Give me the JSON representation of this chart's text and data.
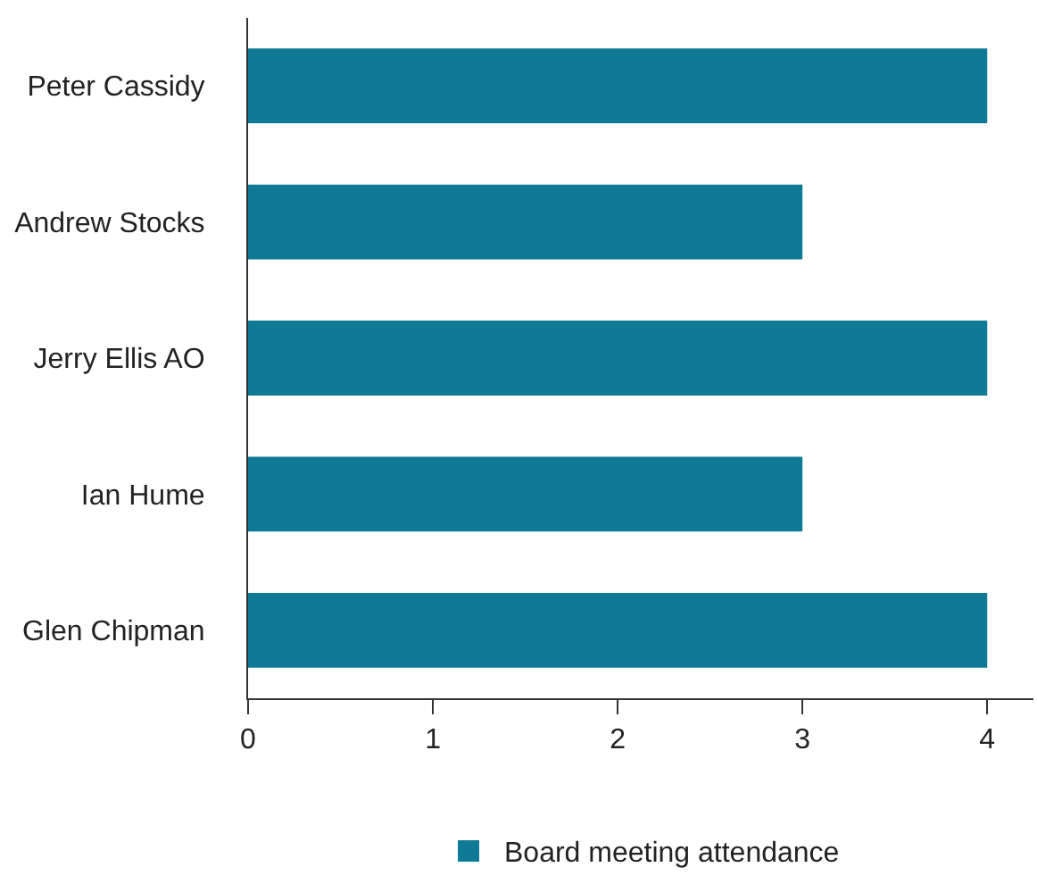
{
  "chart_data": {
    "type": "bar",
    "orientation": "horizontal",
    "categories": [
      "Peter Cassidy",
      "Andrew Stocks",
      "Jerry Ellis AO",
      "Ian Hume",
      "Glen Chipman"
    ],
    "series": [
      {
        "name": "Board meeting attendance",
        "color": "#0e7a96",
        "values": [
          4,
          3,
          4,
          3,
          4
        ]
      }
    ],
    "xlim": [
      0,
      4.25
    ],
    "xticks": [
      0,
      1,
      2,
      3,
      4
    ],
    "grid": false,
    "legend": "bottom"
  }
}
